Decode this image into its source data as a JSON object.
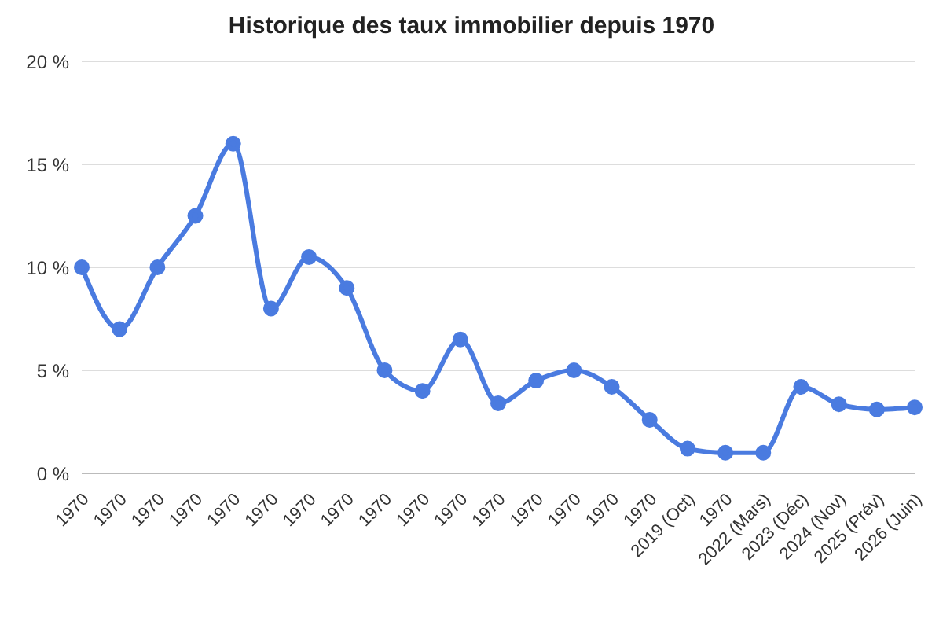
{
  "chart_data": {
    "type": "line",
    "title": "Historique des taux immobilier depuis 1970",
    "categories": [
      "1970",
      "1970",
      "1970",
      "1970",
      "1970",
      "1970",
      "1970",
      "1970",
      "1970",
      "1970",
      "1970",
      "1970",
      "1970",
      "1970",
      "1970",
      "1970",
      "2019 (Oct)",
      "1970",
      "2022 (Mars)",
      "2023 (Déc)",
      "2024 (Nov)",
      "2025 (Prév)",
      "2026 (Juin)"
    ],
    "series": [
      {
        "color": "#4a7be0",
        "values": [
          10,
          7,
          10,
          12.5,
          16,
          8,
          10.5,
          9,
          5,
          4,
          6.5,
          3.4,
          4.5,
          5,
          4.2,
          2.6,
          1.2,
          1.0,
          1.0,
          4.2,
          3.35,
          3.1,
          3.2
        ]
      }
    ],
    "ylim": [
      0,
      20
    ],
    "yticks": [
      {
        "value": 0,
        "label": "0 %"
      },
      {
        "value": 5,
        "label": "5 %"
      },
      {
        "value": 10,
        "label": "10 %"
      },
      {
        "value": 15,
        "label": "15 %"
      },
      {
        "value": 20,
        "label": "20 %"
      }
    ],
    "grid": "y",
    "marker": "circle",
    "line_style": "solid"
  }
}
